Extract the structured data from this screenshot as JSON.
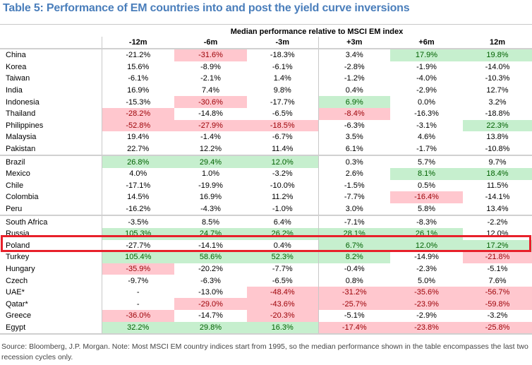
{
  "title": "Table 5: Performance of EM countries into and post the yield curve inversions",
  "super_header": "Median performance relative to MSCI EM index",
  "columns": [
    "-12m",
    "-6m",
    "-3m",
    "+3m",
    "+6m",
    "12m"
  ],
  "colors": {
    "positive_bg": "#c6efce",
    "positive_text": "#006100",
    "negative_bg": "#ffc7ce",
    "negative_text": "#9c0006",
    "highlight_border": "#e8202a",
    "title": "#4a7ebb"
  },
  "highlighted_row": "Poland",
  "groups": [
    {
      "rows": [
        {
          "country": "China",
          "values": [
            "-21.2%",
            "-31.6%",
            "-18.3%",
            "3.4%",
            "17.9%",
            "19.8%"
          ],
          "shade": [
            "",
            "neg",
            "",
            "",
            "pos",
            "pos"
          ]
        },
        {
          "country": "Korea",
          "values": [
            "15.6%",
            "-8.9%",
            "-6.1%",
            "-2.8%",
            "-1.9%",
            "-14.0%"
          ],
          "shade": [
            "",
            "",
            "",
            "",
            "",
            ""
          ]
        },
        {
          "country": "Taiwan",
          "values": [
            "-6.1%",
            "-2.1%",
            "1.4%",
            "-1.2%",
            "-4.0%",
            "-10.3%"
          ],
          "shade": [
            "",
            "",
            "",
            "",
            "",
            ""
          ]
        },
        {
          "country": "India",
          "values": [
            "16.9%",
            "7.4%",
            "9.8%",
            "0.4%",
            "-2.9%",
            "12.7%"
          ],
          "shade": [
            "",
            "",
            "",
            "",
            "",
            ""
          ]
        },
        {
          "country": "Indonesia",
          "values": [
            "-15.3%",
            "-30.6%",
            "-17.7%",
            "6.9%",
            "0.0%",
            "3.2%"
          ],
          "shade": [
            "",
            "neg",
            "",
            "pos",
            "",
            ""
          ]
        },
        {
          "country": "Thailand",
          "values": [
            "-28.2%",
            "-14.8%",
            "-6.5%",
            "-8.4%",
            "-16.3%",
            "-18.8%"
          ],
          "shade": [
            "neg",
            "",
            "",
            "neg",
            "",
            ""
          ]
        },
        {
          "country": "Philippines",
          "values": [
            "-52.8%",
            "-27.9%",
            "-18.5%",
            "-6.3%",
            "-3.1%",
            "22.3%"
          ],
          "shade": [
            "neg",
            "neg",
            "neg",
            "",
            "",
            "pos"
          ]
        },
        {
          "country": "Malaysia",
          "values": [
            "19.4%",
            "-1.4%",
            "-6.7%",
            "3.5%",
            "4.6%",
            "13.8%"
          ],
          "shade": [
            "",
            "",
            "",
            "",
            "",
            ""
          ]
        },
        {
          "country": "Pakistan",
          "values": [
            "22.7%",
            "12.2%",
            "11.4%",
            "6.1%",
            "-1.7%",
            "-10.8%"
          ],
          "shade": [
            "",
            "",
            "",
            "",
            "",
            ""
          ]
        }
      ]
    },
    {
      "rows": [
        {
          "country": "Brazil",
          "values": [
            "26.8%",
            "29.4%",
            "12.0%",
            "0.3%",
            "5.7%",
            "9.7%"
          ],
          "shade": [
            "pos",
            "pos",
            "pos",
            "",
            "",
            ""
          ]
        },
        {
          "country": "Mexico",
          "values": [
            "4.0%",
            "1.0%",
            "-3.2%",
            "2.6%",
            "8.1%",
            "18.4%"
          ],
          "shade": [
            "",
            "",
            "",
            "",
            "pos",
            "pos"
          ]
        },
        {
          "country": "Chile",
          "values": [
            "-17.1%",
            "-19.9%",
            "-10.0%",
            "-1.5%",
            "0.5%",
            "11.5%"
          ],
          "shade": [
            "",
            "",
            "",
            "",
            "",
            ""
          ]
        },
        {
          "country": "Colombia",
          "values": [
            "14.5%",
            "16.9%",
            "11.2%",
            "-7.7%",
            "-16.4%",
            "-14.1%"
          ],
          "shade": [
            "",
            "",
            "",
            "",
            "neg",
            ""
          ]
        },
        {
          "country": "Peru",
          "values": [
            "-16.2%",
            "-4.3%",
            "-1.0%",
            "3.0%",
            "5.8%",
            "13.4%"
          ],
          "shade": [
            "",
            "",
            "",
            "",
            "",
            ""
          ]
        }
      ]
    },
    {
      "rows": [
        {
          "country": "South Africa",
          "values": [
            "-3.5%",
            "8.5%",
            "6.4%",
            "-7.1%",
            "-8.3%",
            "-2.2%"
          ],
          "shade": [
            "",
            "",
            "",
            "",
            "",
            ""
          ]
        },
        {
          "country": "Russia",
          "values": [
            "105.3%",
            "24.7%",
            "26.2%",
            "28.1%",
            "26.1%",
            "12.0%"
          ],
          "shade": [
            "pos",
            "pos",
            "pos",
            "pos",
            "pos",
            ""
          ]
        },
        {
          "country": "Poland",
          "values": [
            "-27.7%",
            "-14.1%",
            "0.4%",
            "6.7%",
            "12.0%",
            "17.2%"
          ],
          "shade": [
            "",
            "",
            "",
            "pos",
            "pos",
            "pos"
          ]
        },
        {
          "country": "Turkey",
          "values": [
            "105.4%",
            "58.6%",
            "52.3%",
            "8.2%",
            "-14.9%",
            "-21.8%"
          ],
          "shade": [
            "pos",
            "pos",
            "pos",
            "pos",
            "",
            "neg"
          ]
        },
        {
          "country": "Hungary",
          "values": [
            "-35.9%",
            "-20.2%",
            "-7.7%",
            "-0.4%",
            "-2.3%",
            "-5.1%"
          ],
          "shade": [
            "neg",
            "",
            "",
            "",
            "",
            ""
          ]
        },
        {
          "country": "Czech",
          "values": [
            "-9.7%",
            "-6.3%",
            "-6.5%",
            "0.8%",
            "5.0%",
            "7.6%"
          ],
          "shade": [
            "",
            "",
            "",
            "",
            "",
            ""
          ]
        },
        {
          "country": "UAE*",
          "values": [
            "-",
            "-13.0%",
            "-48.4%",
            "-31.2%",
            "-35.6%",
            "-56.7%"
          ],
          "shade": [
            "",
            "",
            "neg",
            "neg",
            "neg",
            "neg"
          ]
        },
        {
          "country": "Qatar*",
          "values": [
            "-",
            "-29.0%",
            "-43.6%",
            "-25.7%",
            "-23.9%",
            "-59.8%"
          ],
          "shade": [
            "",
            "neg",
            "neg",
            "neg",
            "neg",
            "neg"
          ]
        },
        {
          "country": "Greece",
          "values": [
            "-36.0%",
            "-14.7%",
            "-20.3%",
            "-5.1%",
            "-2.9%",
            "-3.2%"
          ],
          "shade": [
            "neg",
            "",
            "neg",
            "",
            "",
            ""
          ]
        },
        {
          "country": "Egypt",
          "values": [
            "32.2%",
            "29.8%",
            "16.3%",
            "-17.4%",
            "-23.8%",
            "-25.8%"
          ],
          "shade": [
            "pos",
            "pos",
            "pos",
            "neg",
            "neg",
            "neg"
          ]
        }
      ]
    }
  ],
  "footer": "Source: Bloomberg, J.P. Morgan. Note: Most MSCI EM country indices start from 1995, so the median performance shown in the table encompasses the last two recession cycles only."
}
